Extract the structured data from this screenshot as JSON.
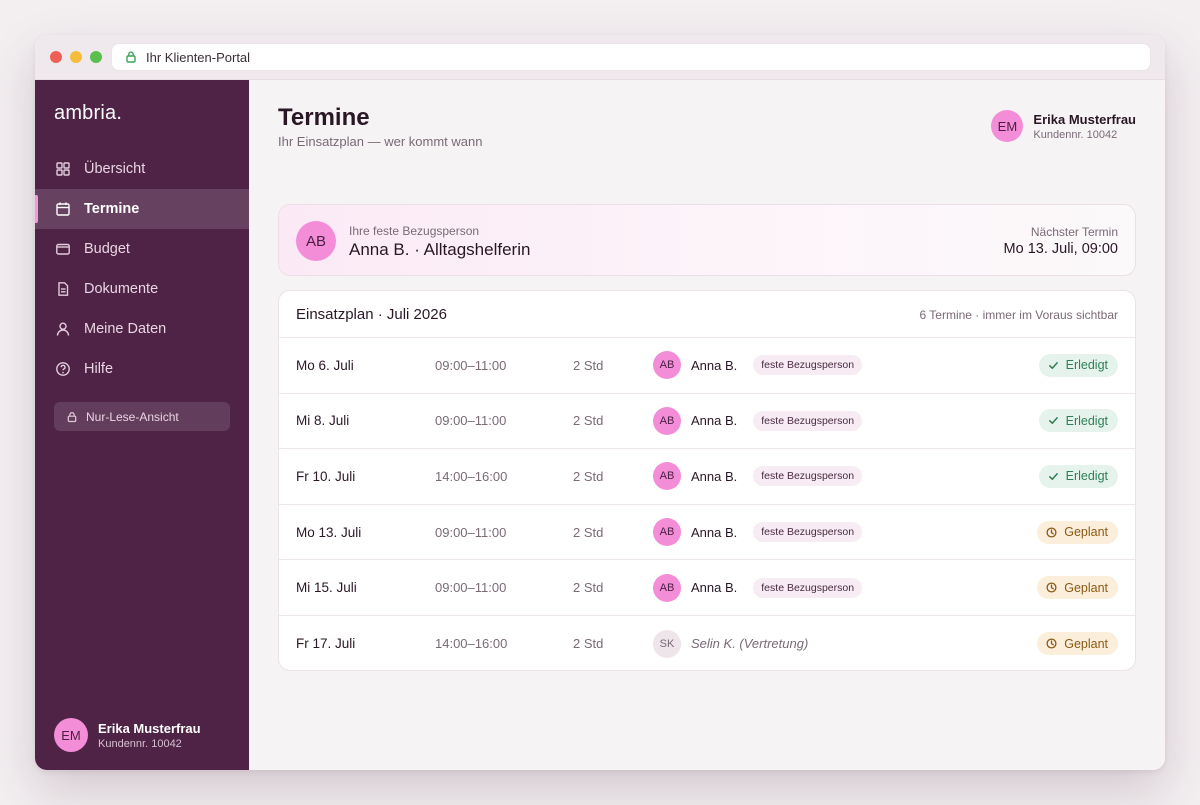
{
  "browser": {
    "url_title": "Ihr Klienten-Portal"
  },
  "sidebar": {
    "brand": "ambria.",
    "items": [
      {
        "label": "Übersicht",
        "icon": "grid-icon",
        "active": false
      },
      {
        "label": "Termine",
        "icon": "calendar-icon",
        "active": true
      },
      {
        "label": "Budget",
        "icon": "wallet-icon",
        "active": false
      },
      {
        "label": "Dokumente",
        "icon": "document-icon",
        "active": false
      },
      {
        "label": "Meine Daten",
        "icon": "user-icon",
        "active": false
      },
      {
        "label": "Hilfe",
        "icon": "help-icon",
        "active": false
      }
    ],
    "readonly_label": "Nur-Lese-Ansicht",
    "user": {
      "initials": "EM",
      "name": "Erika Musterfrau",
      "customer_no": "Kundennr. 10042"
    }
  },
  "header": {
    "title": "Termine",
    "subtitle": "Ihr Einsatzplan — wer kommt wann",
    "user": {
      "initials": "EM",
      "name": "Erika Musterfrau",
      "customer_no": "Kundennr. 10042"
    }
  },
  "hero": {
    "initials": "AB",
    "label": "Ihre feste Bezugsperson",
    "value": "Anna B. · Alltagshelferin",
    "next_label": "Nächster Termin",
    "next_value": "Mo 13. Juli, 09:00"
  },
  "plan": {
    "title": "Einsatzplan · Juli 2026",
    "meta": "6 Termine · immer im Voraus sichtbar",
    "rows": [
      {
        "date": "Mo 6. Juli",
        "time": "09:00–11:00",
        "duration": "2 Std",
        "initials": "AB",
        "person": "Anna B.",
        "tag": "feste Bezugsperson",
        "substitute": false,
        "status": "Erledigt",
        "status_type": "done"
      },
      {
        "date": "Mi 8. Juli",
        "time": "09:00–11:00",
        "duration": "2 Std",
        "initials": "AB",
        "person": "Anna B.",
        "tag": "feste Bezugsperson",
        "substitute": false,
        "status": "Erledigt",
        "status_type": "done"
      },
      {
        "date": "Fr 10. Juli",
        "time": "14:00–16:00",
        "duration": "2 Std",
        "initials": "AB",
        "person": "Anna B.",
        "tag": "feste Bezugsperson",
        "substitute": false,
        "status": "Erledigt",
        "status_type": "done"
      },
      {
        "date": "Mo 13. Juli",
        "time": "09:00–11:00",
        "duration": "2 Std",
        "initials": "AB",
        "person": "Anna B.",
        "tag": "feste Bezugsperson",
        "substitute": false,
        "status": "Geplant",
        "status_type": "planned"
      },
      {
        "date": "Mi 15. Juli",
        "time": "09:00–11:00",
        "duration": "2 Std",
        "initials": "AB",
        "person": "Anna B.",
        "tag": "feste Bezugsperson",
        "substitute": false,
        "status": "Geplant",
        "status_type": "planned"
      },
      {
        "date": "Fr 17. Juli",
        "time": "14:00–16:00",
        "duration": "2 Std",
        "initials": "SK",
        "person": "Selin K. (Vertretung)",
        "tag": "",
        "substitute": true,
        "status": "Geplant",
        "status_type": "planned"
      }
    ]
  },
  "colors": {
    "sidebar_bg": "#4e2346",
    "accent_pink": "#f48dd8",
    "done_green": "#2e7f56",
    "planned_amber": "#8a5a14"
  }
}
